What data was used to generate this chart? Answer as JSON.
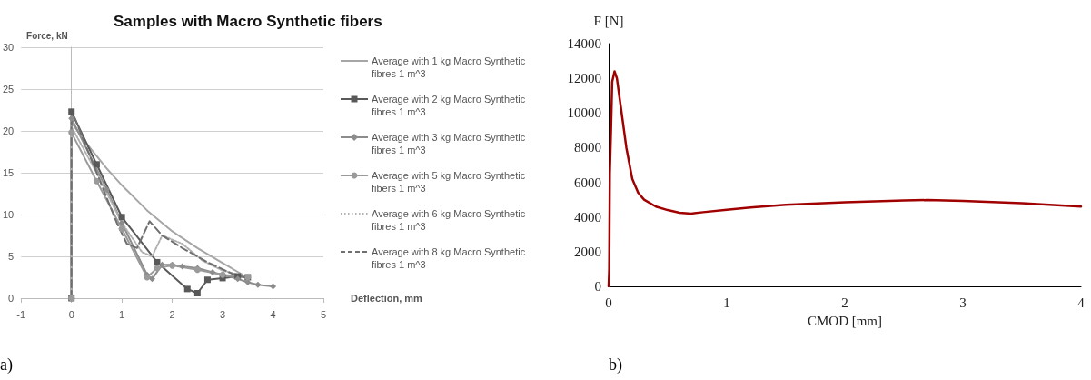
{
  "chart_data": [
    {
      "type": "line",
      "title": "Samples with Macro Synthetic fibers",
      "xlabel": "Deflection, mm",
      "ylabel": "Force, kN",
      "xlim": [
        -1,
        5
      ],
      "xticks": [
        -1,
        0,
        1,
        2,
        3,
        4,
        5
      ],
      "ylim": [
        0,
        30
      ],
      "yticks": [
        0,
        5,
        10,
        15,
        20,
        25,
        30
      ],
      "grid": "y",
      "legend": "right",
      "annotations": [
        "a)"
      ],
      "series": [
        {
          "name": "Average with 1 kg Macro Synthetic fibres 1 m^3",
          "color": "#a6a6a6",
          "marker": "none",
          "line_style": "solid",
          "x": [
            0,
            0,
            0.3,
            0.7,
            1,
            1.5,
            2,
            2.5,
            3,
            3.4
          ],
          "values": [
            0,
            21,
            18.5,
            15.5,
            13.5,
            10.5,
            8,
            6,
            4.2,
            2.8
          ]
        },
        {
          "name": "Average with 2 kg Macro Synthetic fibres 1 m^3",
          "color": "#595959",
          "marker": "square",
          "line_style": "solid",
          "x": [
            0,
            0,
            0.5,
            1,
            1.7,
            2.3,
            2.5,
            2.7,
            3,
            3.3,
            3.5
          ],
          "values": [
            0,
            22.3,
            16,
            9.7,
            4.3,
            1.1,
            0.6,
            2.2,
            2.4,
            2.6,
            2.5
          ]
        },
        {
          "name": "Average with 3 kg Macro Synthetic fibres 1 m^3",
          "color": "#8c8c8c",
          "marker": "diamond",
          "line_style": "solid",
          "x": [
            0,
            0,
            0.7,
            1,
            1.5,
            1.6,
            1.8,
            2,
            2.2,
            2.5,
            2.8,
            3,
            3.3,
            3.5,
            3.7,
            4
          ],
          "values": [
            0,
            21.5,
            13,
            9,
            2.8,
            2.3,
            4,
            4,
            3.8,
            3.6,
            3.1,
            2.8,
            2.3,
            1.9,
            1.6,
            1.4
          ]
        },
        {
          "name": "Average with 5 kg Macro Synthetic fibers 1 m^3",
          "color": "#9a9a9a",
          "marker": "circle",
          "line_style": "solid",
          "x": [
            0,
            0,
            0.5,
            1,
            1.5,
            1.7,
            2,
            2.5,
            3,
            3.5
          ],
          "values": [
            0,
            19.8,
            14,
            8.3,
            2.5,
            3.6,
            3.9,
            3.4,
            2.8,
            2.5
          ]
        },
        {
          "name": "Average with 6 kg Macro Synthetic fibres 1 m^3",
          "color": "#b0b0b0",
          "marker": "none",
          "line_style": "dotted",
          "x": [
            0,
            0,
            0.5,
            1,
            1.4,
            1.6,
            1.8,
            2.2,
            2.6,
            3,
            3.4
          ],
          "values": [
            0,
            20.5,
            15,
            9,
            5.5,
            5,
            7.5,
            6.5,
            4.5,
            3.3,
            2.7
          ]
        },
        {
          "name": "Average with 8 kg Macro Synthetic fibres 1 m^3",
          "color": "#6f6f6f",
          "marker": "none",
          "line_style": "dashed",
          "x": [
            0,
            0,
            0.5,
            0.9,
            1.1,
            1.3,
            1.55,
            1.8,
            2.2,
            2.7,
            3.2,
            3.5
          ],
          "values": [
            0,
            22.5,
            15,
            9,
            6.5,
            6,
            9.2,
            7.5,
            6,
            4.3,
            2.9,
            2.4
          ]
        }
      ]
    },
    {
      "type": "line",
      "xlabel": "CMOD [mm]",
      "ylabel": "F [N]",
      "xlim": [
        0,
        4
      ],
      "xticks": [
        0,
        1,
        2,
        3,
        4
      ],
      "ylim": [
        0,
        14000
      ],
      "yticks": [
        0,
        2000,
        4000,
        6000,
        8000,
        10000,
        12000,
        14000
      ],
      "grid": false,
      "legend": false,
      "annotations": [
        "b)"
      ],
      "series": [
        {
          "color": "#a00000",
          "marker": "none",
          "line_style": "solid",
          "x": [
            0,
            0.005,
            0.01,
            0.02,
            0.03,
            0.05,
            0.07,
            0.1,
            0.15,
            0.2,
            0.25,
            0.3,
            0.4,
            0.5,
            0.6,
            0.7,
            0.8,
            1,
            1.2,
            1.5,
            2,
            2.5,
            2.7,
            3,
            3.5,
            4
          ],
          "values": [
            0,
            1000,
            6500,
            9000,
            11800,
            12400,
            12000,
            10500,
            8000,
            6200,
            5400,
            5000,
            4600,
            4400,
            4250,
            4200,
            4280,
            4420,
            4550,
            4700,
            4850,
            4950,
            4980,
            4930,
            4800,
            4600
          ]
        }
      ]
    }
  ]
}
